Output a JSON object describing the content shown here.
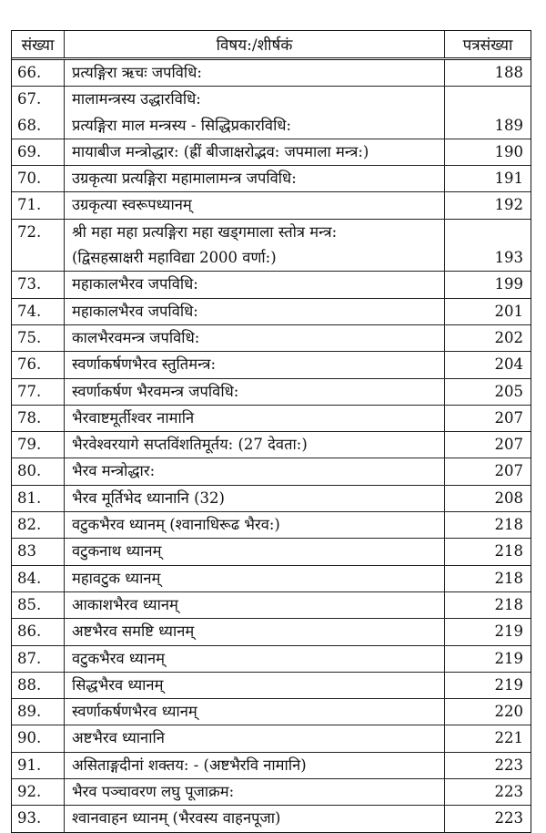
{
  "table": {
    "header": [
      "संख्या",
      "विषय:/शीर्षकं",
      "पत्रसंख्या"
    ],
    "rows": [
      {
        "numbers": [
          "66."
        ],
        "lines": [
          "प्रत्यङ्गिरा ऋचः जपविधि:"
        ],
        "page": 188
      },
      {
        "numbers": [
          "67.",
          "68."
        ],
        "lines": [
          "मालामन्त्रस्य उद्धारविधि:",
          "प्रत्यङ्गिरा माल मन्त्रस्य - सिद्धिप्रकारविधि:"
        ],
        "page": 189
      },
      {
        "numbers": [
          "69."
        ],
        "lines": [
          "मायाबीज मन्त्रोद्धार: (ह्रीं बीजाक्षरोद्भव: जपमाला मन्त्र:)"
        ],
        "page": 190
      },
      {
        "numbers": [
          "70."
        ],
        "lines": [
          "उग्रकृत्या प्रत्यङ्गिरा महामालामन्त्र जपविधि:"
        ],
        "page": 191
      },
      {
        "numbers": [
          "71."
        ],
        "lines": [
          "उग्रकृत्या स्वरूपध्यानम्"
        ],
        "page": 192
      },
      {
        "numbers": [
          "72."
        ],
        "lines": [
          "श्री महा महा प्रत्यङ्गिरा महा खड्गमाला स्तोत्र मन्त्र:",
          "(द्विसहस्राक्षरी महाविद्या 2000 वर्णा:)"
        ],
        "page": 193
      },
      {
        "numbers": [
          "73."
        ],
        "lines": [
          "महाकालभैरव जपविधि:"
        ],
        "page": 199
      },
      {
        "numbers": [
          "74."
        ],
        "lines": [
          "महाकालभैरव जपविधि:"
        ],
        "page": 201
      },
      {
        "numbers": [
          "75."
        ],
        "lines": [
          "कालभैरवमन्त्र जपविधि:"
        ],
        "page": 202
      },
      {
        "numbers": [
          "76."
        ],
        "lines": [
          "स्वर्णाकर्षणभैरव स्तुतिमन्त्र:"
        ],
        "page": 204
      },
      {
        "numbers": [
          "77."
        ],
        "lines": [
          "स्वर्णाकर्षण भैरवमन्त्र जपविधि:"
        ],
        "page": 205
      },
      {
        "numbers": [
          "78."
        ],
        "lines": [
          "भैरवाष्टमूर्तीश्वर नामानि"
        ],
        "page": 207
      },
      {
        "numbers": [
          "79."
        ],
        "lines": [
          "भैरवेश्वरयागे सप्तविंशतिमूर्तय: (27 देवता:)"
        ],
        "page": 207
      },
      {
        "numbers": [
          "80."
        ],
        "lines": [
          "भैरव मन्त्रोद्धार:"
        ],
        "page": 207
      },
      {
        "numbers": [
          "81."
        ],
        "lines": [
          "भैरव मूर्तिभेद ध्यानानि  (32)"
        ],
        "page": 208
      },
      {
        "numbers": [
          "82."
        ],
        "lines": [
          "वटुकभैरव ध्यानम् (श्वानाधिरूढ भैरव:)"
        ],
        "page": 218
      },
      {
        "numbers": [
          "83"
        ],
        "lines": [
          "वटुकनाथ ध्यानम्"
        ],
        "page": 218
      },
      {
        "numbers": [
          "84."
        ],
        "lines": [
          "महावटुक ध्यानम्"
        ],
        "page": 218
      },
      {
        "numbers": [
          "85."
        ],
        "lines": [
          "आकाशभैरव ध्यानम्"
        ],
        "page": 218
      },
      {
        "numbers": [
          "86."
        ],
        "lines": [
          "अष्टभैरव समष्टि ध्यानम्"
        ],
        "page": 219
      },
      {
        "numbers": [
          "87."
        ],
        "lines": [
          "वटुकभैरव ध्यानम्"
        ],
        "page": 219
      },
      {
        "numbers": [
          "88."
        ],
        "lines": [
          "सिद्धभैरव ध्यानम्"
        ],
        "page": 219
      },
      {
        "numbers": [
          "89."
        ],
        "lines": [
          "स्वर्णाकर्षणभैरव ध्यानम्"
        ],
        "page": 220
      },
      {
        "numbers": [
          "90."
        ],
        "lines": [
          "अष्टभैरव ध्यानानि"
        ],
        "page": 221
      },
      {
        "numbers": [
          "91."
        ],
        "lines": [
          "असिताङ्गदीनां शक्तय: - (अष्टभैरवि नामानि)"
        ],
        "page": 223
      },
      {
        "numbers": [
          "92."
        ],
        "lines": [
          "भैरव पञ्चावरण लघु पूजाक्रम:"
        ],
        "page": 223
      },
      {
        "numbers": [
          "93."
        ],
        "lines": [
          "श्वानवाहन ध्यानम् (भैरवस्य वाहनपूजा)"
        ],
        "page": 223
      }
    ]
  }
}
